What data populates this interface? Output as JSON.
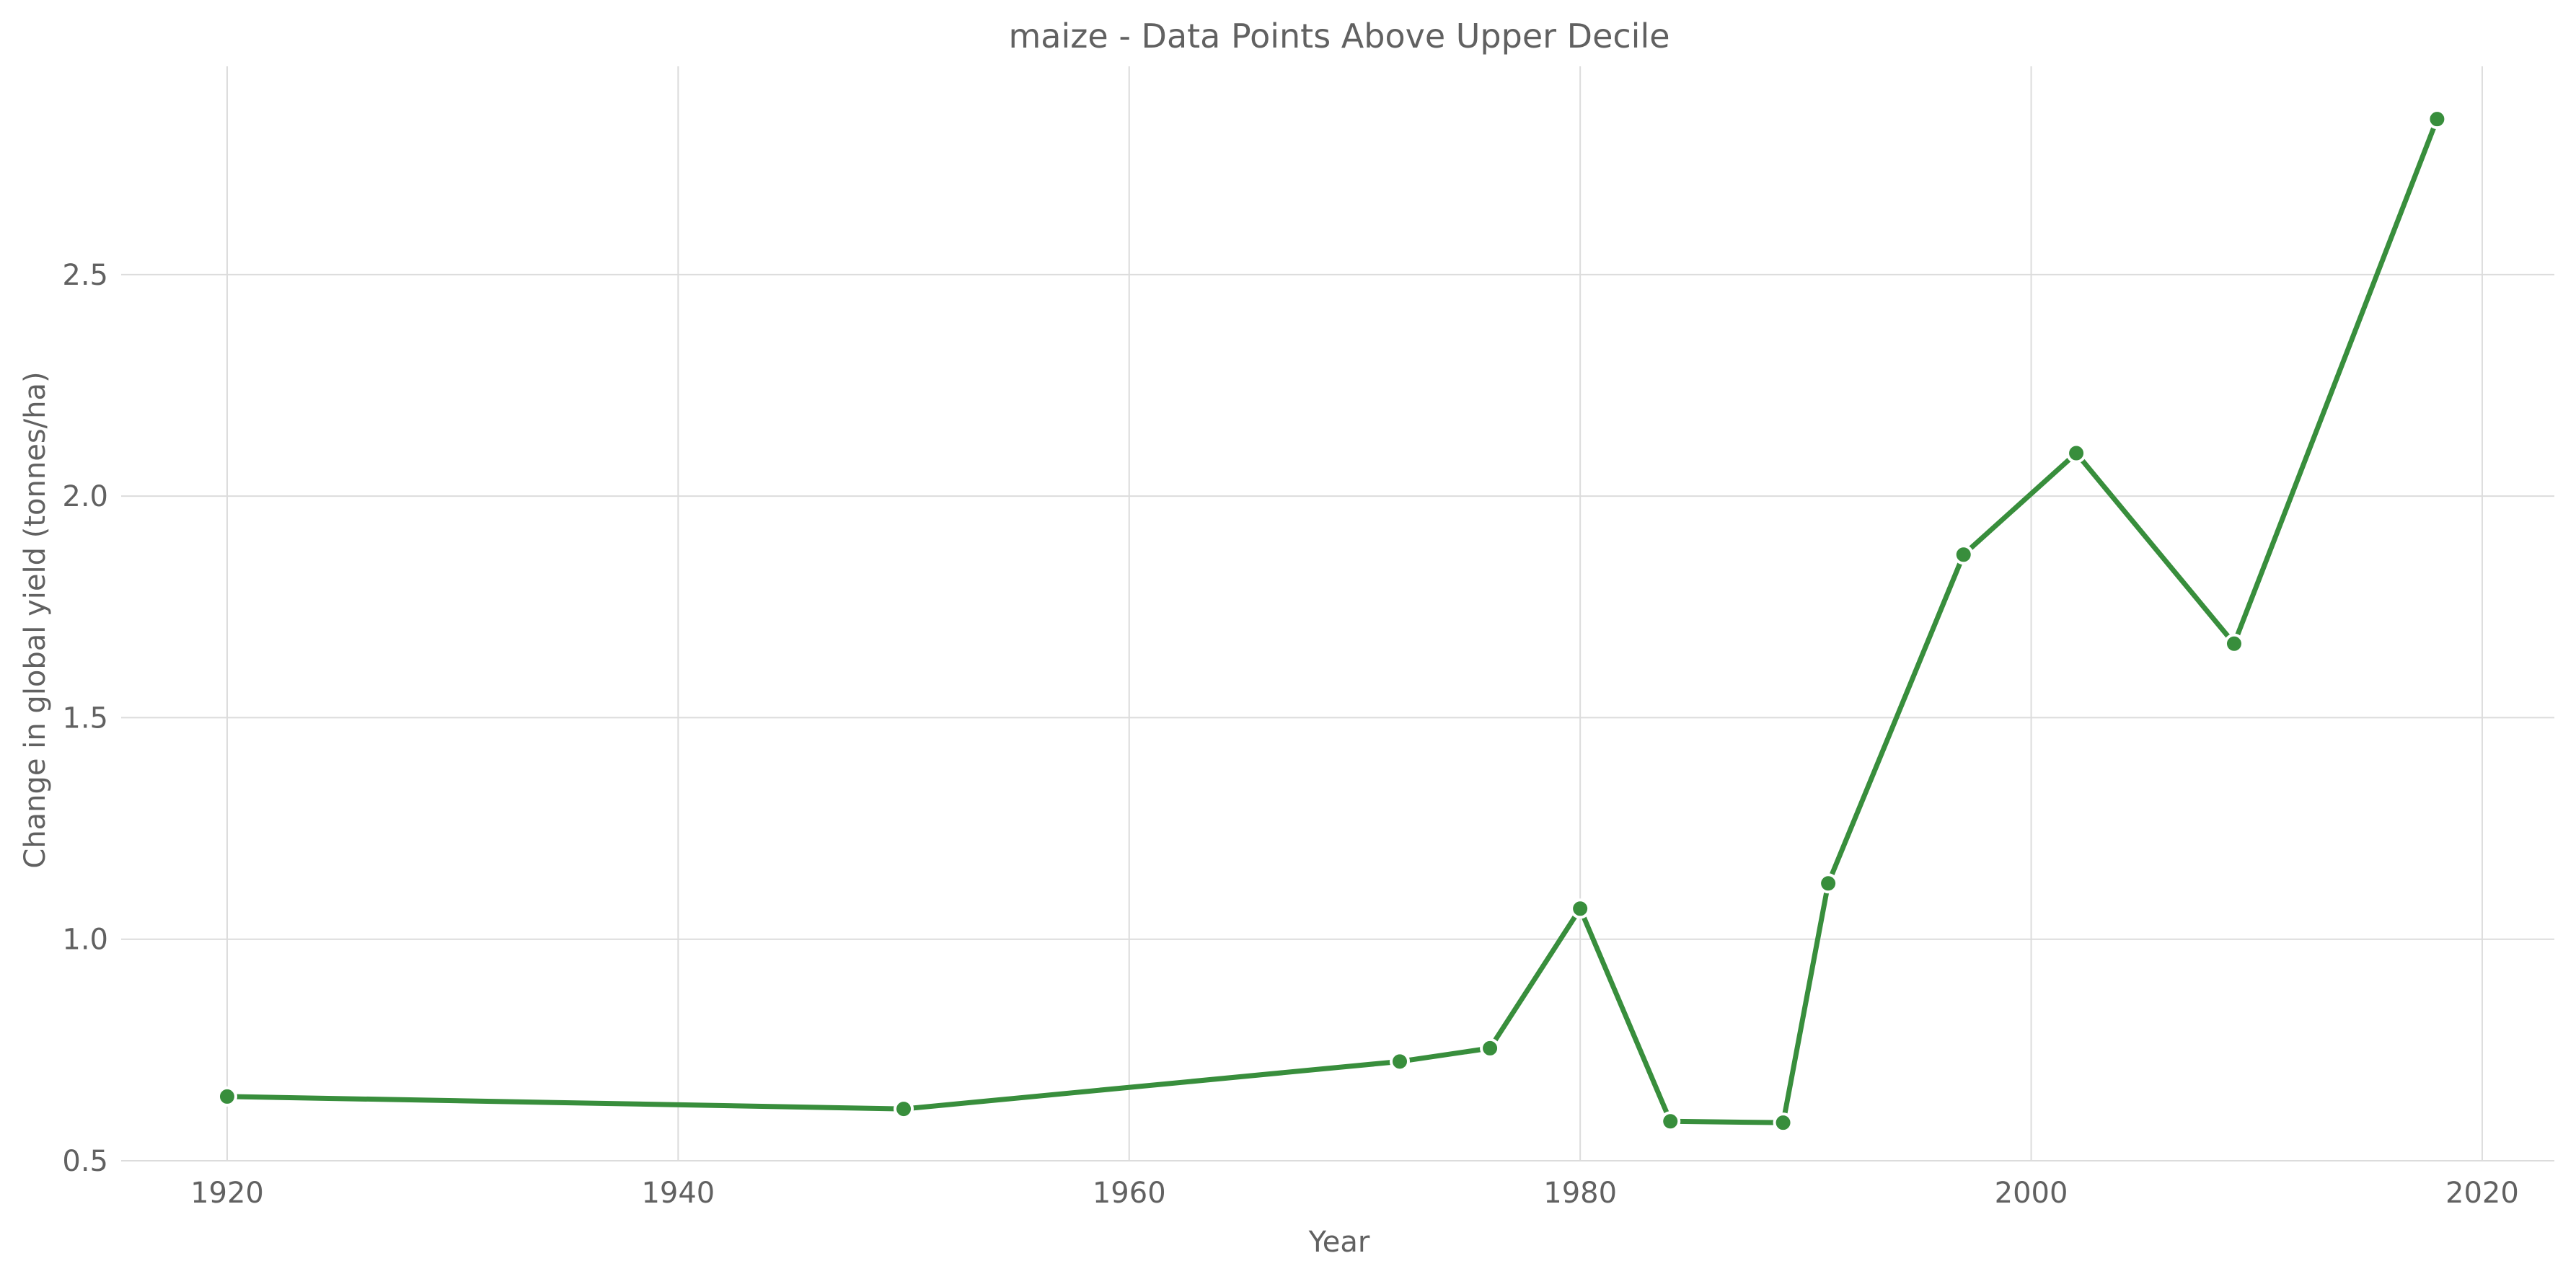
{
  "chart_data": {
    "type": "line",
    "title": "maize - Data Points Above Upper Decile",
    "xlabel": "Year",
    "ylabel": "Change in global yield (tonnes/ha)",
    "xlim": [
      1915.3,
      2023.2
    ],
    "ylim": [
      0.5,
      2.97
    ],
    "xticks": [
      1920,
      1940,
      1960,
      1980,
      2000,
      2020
    ],
    "yticks": [
      0.5,
      1.0,
      1.5,
      2.0,
      2.5
    ],
    "grid": true,
    "color": "#388e3c",
    "series": [
      {
        "name": "maize",
        "x": [
          1920,
          1950,
          1972,
          1976,
          1980,
          1984,
          1989,
          1991,
          1997,
          2002,
          2009,
          2018
        ],
        "y": [
          0.645,
          0.617,
          0.724,
          0.754,
          1.069,
          0.589,
          0.586,
          1.126,
          1.868,
          2.097,
          1.667,
          2.851
        ]
      }
    ]
  }
}
